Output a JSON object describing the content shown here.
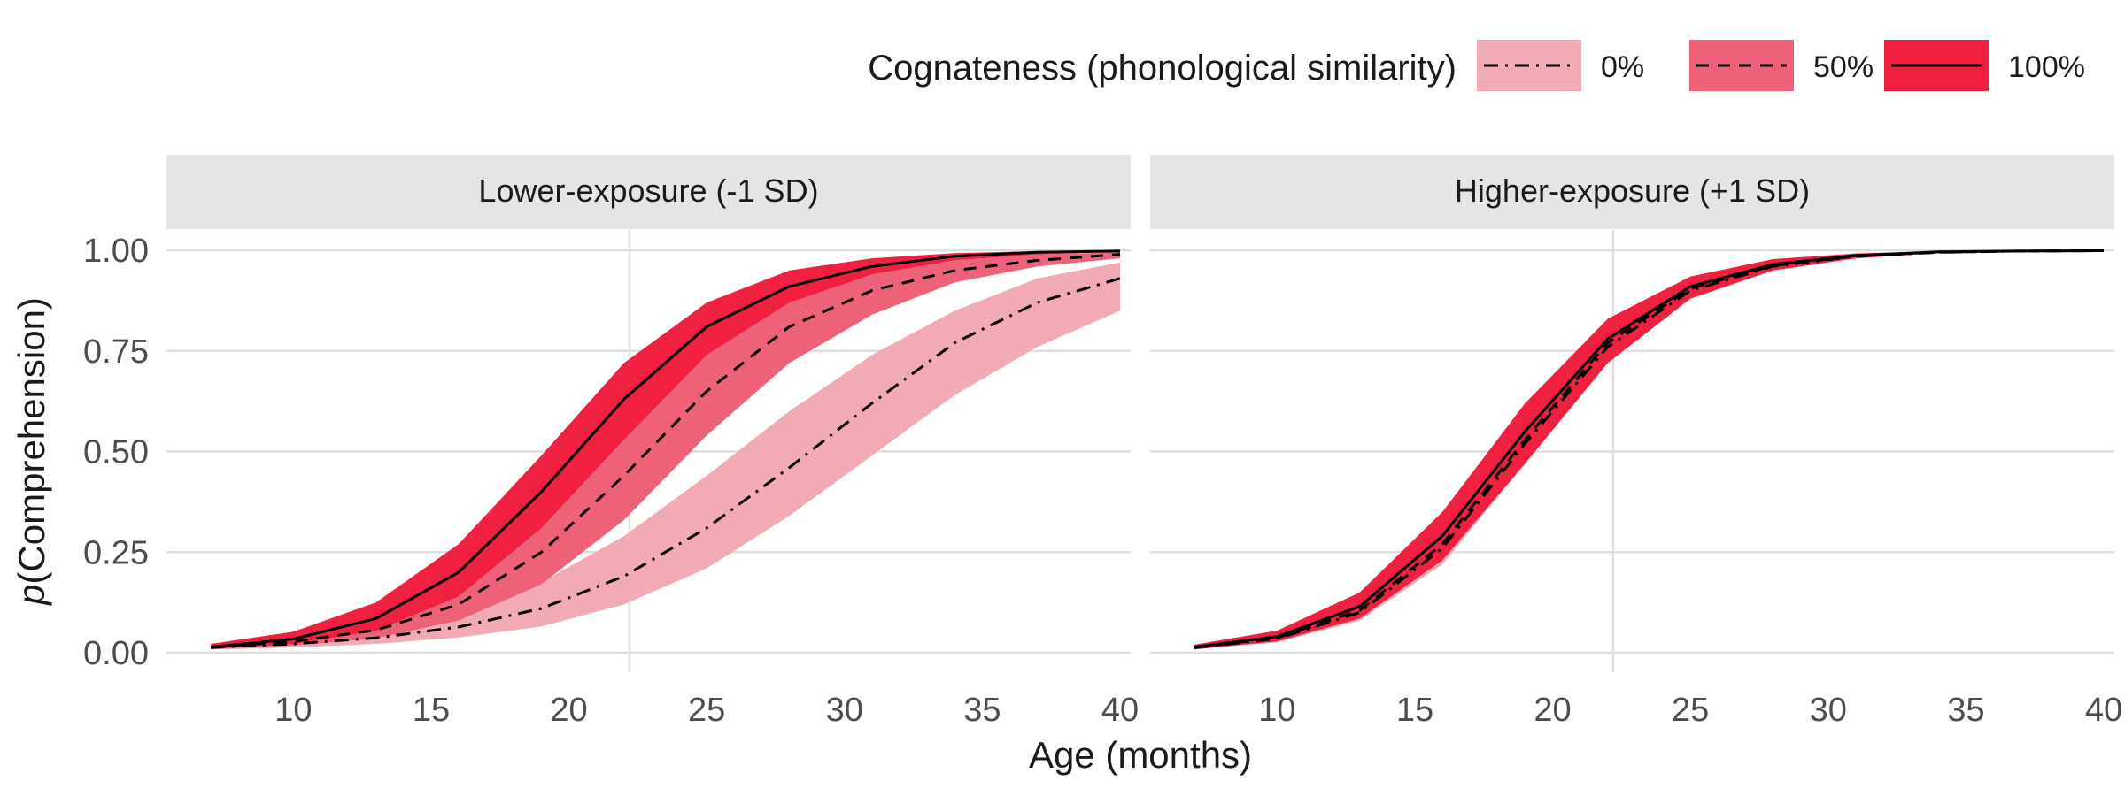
{
  "chart_data": {
    "type": "line",
    "xlabel": "Age (months)",
    "ylabel_italic": "p",
    "ylabel_rest": "(Comprehension)",
    "xlim": [
      7,
      40
    ],
    "ylim": [
      0,
      1
    ],
    "x_ticks": [
      10,
      15,
      20,
      25,
      30,
      35,
      40
    ],
    "x_tick_labels": [
      "10",
      "15",
      "20",
      "25",
      "30",
      "35",
      "40"
    ],
    "y_ticks": [
      0,
      0.25,
      0.5,
      0.75,
      1
    ],
    "y_tick_labels": [
      "0.00",
      "0.25",
      "0.50",
      "0.75",
      "1.00"
    ],
    "vline_x": 22.2,
    "grid": true,
    "legend": {
      "title": "Cognateness (phonological similarity)",
      "placement": "top-right",
      "items": [
        {
          "label": "0%",
          "fill": "#f2aab4",
          "linestyle": "dashdot"
        },
        {
          "label": "50%",
          "fill": "#ee6279",
          "linestyle": "dashed"
        },
        {
          "label": "100%",
          "fill": "#f02040",
          "linestyle": "solid"
        }
      ]
    },
    "panels": [
      {
        "title": "Lower-exposure (-1 SD)",
        "series": [
          {
            "name": "0%",
            "x": [
              7,
              10,
              13,
              16,
              19,
              22,
              25,
              28,
              31,
              34,
              37,
              40
            ],
            "y": [
              0.013,
              0.022,
              0.037,
              0.064,
              0.11,
              0.19,
              0.31,
              0.46,
              0.62,
              0.77,
              0.87,
              0.93
            ],
            "lower": [
              0.008,
              0.013,
              0.022,
              0.038,
              0.065,
              0.12,
              0.21,
              0.34,
              0.49,
              0.64,
              0.76,
              0.85
            ],
            "upper": [
              0.022,
              0.036,
              0.062,
              0.105,
              0.175,
              0.29,
              0.44,
              0.6,
              0.74,
              0.85,
              0.93,
              0.97
            ]
          },
          {
            "name": "50%",
            "x": [
              7,
              10,
              13,
              16,
              19,
              22,
              25,
              28,
              31,
              34,
              37,
              40
            ],
            "y": [
              0.014,
              0.028,
              0.056,
              0.12,
              0.25,
              0.44,
              0.65,
              0.81,
              0.9,
              0.95,
              0.975,
              0.99
            ],
            "lower": [
              0.009,
              0.018,
              0.036,
              0.08,
              0.17,
              0.33,
              0.54,
              0.72,
              0.84,
              0.92,
              0.96,
              0.98
            ],
            "upper": [
              0.021,
              0.042,
              0.085,
              0.17,
              0.33,
              0.54,
              0.74,
              0.88,
              0.94,
              0.975,
              0.99,
              0.995
            ]
          },
          {
            "name": "100%",
            "x": [
              7,
              10,
              13,
              16,
              19,
              22,
              25,
              28,
              31,
              34,
              37,
              40
            ],
            "y": [
              0.014,
              0.034,
              0.085,
              0.2,
              0.4,
              0.63,
              0.81,
              0.91,
              0.96,
              0.985,
              0.995,
              0.998
            ],
            "lower": [
              0.009,
              0.022,
              0.055,
              0.14,
              0.31,
              0.53,
              0.74,
              0.87,
              0.94,
              0.975,
              0.99,
              0.996
            ],
            "upper": [
              0.022,
              0.052,
              0.125,
              0.27,
              0.49,
              0.72,
              0.87,
              0.95,
              0.98,
              0.993,
              0.998,
              0.999
            ]
          }
        ]
      },
      {
        "title": "Higher-exposure (+1 SD)",
        "series": [
          {
            "name": "0%",
            "x": [
              7,
              10,
              13,
              16,
              19,
              22,
              25,
              28,
              31,
              34,
              37,
              40
            ],
            "y": [
              0.012,
              0.035,
              0.1,
              0.26,
              0.52,
              0.76,
              0.9,
              0.96,
              0.985,
              0.995,
              0.998,
              0.999
            ],
            "lower": [
              0.008,
              0.026,
              0.08,
              0.22,
              0.47,
              0.72,
              0.88,
              0.95,
              0.98,
              0.993,
              0.997,
              0.999
            ],
            "upper": [
              0.018,
              0.047,
              0.125,
              0.31,
              0.57,
              0.8,
              0.92,
              0.97,
              0.99,
              0.997,
              0.999,
              1.0
            ]
          },
          {
            "name": "50%",
            "x": [
              7,
              10,
              13,
              16,
              19,
              22,
              25,
              28,
              31,
              34,
              37,
              40
            ],
            "y": [
              0.013,
              0.037,
              0.105,
              0.27,
              0.53,
              0.77,
              0.905,
              0.962,
              0.986,
              0.995,
              0.998,
              0.999
            ],
            "lower": [
              0.009,
              0.028,
              0.085,
              0.23,
              0.48,
              0.73,
              0.885,
              0.952,
              0.981,
              0.993,
              0.997,
              0.999
            ],
            "upper": [
              0.019,
              0.049,
              0.13,
              0.32,
              0.58,
              0.81,
              0.925,
              0.972,
              0.99,
              0.997,
              0.999,
              1.0
            ]
          },
          {
            "name": "100%",
            "x": [
              7,
              10,
              13,
              16,
              19,
              22,
              25,
              28,
              31,
              34,
              37,
              40
            ],
            "y": [
              0.014,
              0.04,
              0.115,
              0.29,
              0.55,
              0.78,
              0.91,
              0.965,
              0.987,
              0.996,
              0.998,
              0.999
            ],
            "lower": [
              0.009,
              0.028,
              0.085,
              0.23,
              0.47,
              0.72,
              0.88,
              0.95,
              0.98,
              0.993,
              0.997,
              0.999
            ],
            "upper": [
              0.02,
              0.055,
              0.15,
              0.35,
              0.62,
              0.83,
              0.935,
              0.978,
              0.992,
              0.998,
              0.999,
              1.0
            ]
          }
        ]
      }
    ]
  }
}
